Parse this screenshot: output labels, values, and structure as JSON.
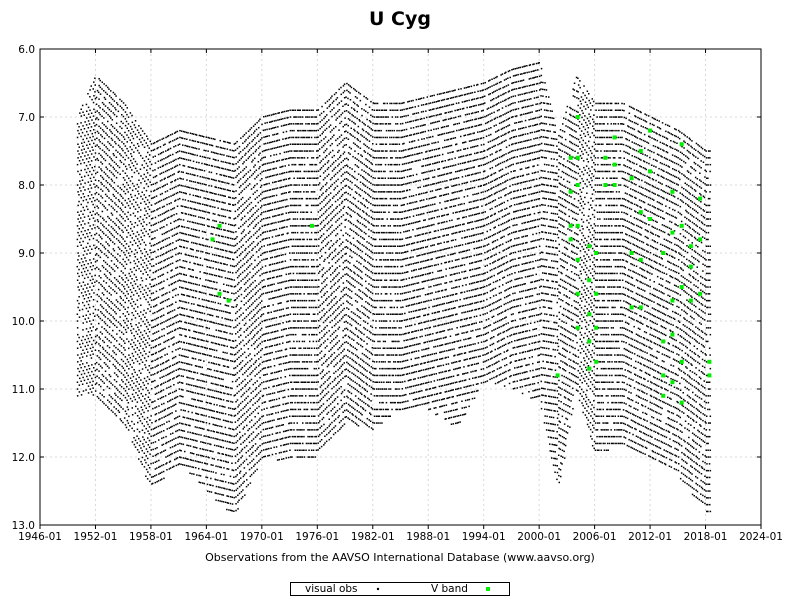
{
  "chart_data": {
    "type": "scatter",
    "title": "U Cyg",
    "xlabel": "Observations from the AAVSO International Database (www.aavso.org)",
    "ylabel": "",
    "x_ticks": [
      "1946-01",
      "1952-01",
      "1958-01",
      "1964-01",
      "1970-01",
      "1976-01",
      "1982-01",
      "1988-01",
      "1994-01",
      "2000-01",
      "2006-01",
      "2012-01",
      "2018-01",
      "2024-01"
    ],
    "y_ticks": [
      "6.0",
      "7.0",
      "8.0",
      "9.0",
      "10.0",
      "11.0",
      "12.0",
      "13.0"
    ],
    "xlim": [
      "1946-01",
      "2024-01"
    ],
    "ylim": [
      6.0,
      13.0
    ],
    "y_inverted": true,
    "grid": true,
    "legend_position": "bottom-center",
    "series": [
      {
        "name": "visual obs",
        "color": "#000000",
        "envelope": [
          {
            "x": "1950-01",
            "min": 7.0,
            "max": 11.1
          },
          {
            "x": "1952-01",
            "min": 6.4,
            "max": 11.1
          },
          {
            "x": "1955-01",
            "min": 6.8,
            "max": 11.5
          },
          {
            "x": "1958-01",
            "min": 7.4,
            "max": 12.5
          },
          {
            "x": "1961-01",
            "min": 7.2,
            "max": 12.1
          },
          {
            "x": "1964-01",
            "min": 7.3,
            "max": 12.5
          },
          {
            "x": "1967-01",
            "min": 7.4,
            "max": 12.9
          },
          {
            "x": "1970-01",
            "min": 7.0,
            "max": 12.0
          },
          {
            "x": "1973-01",
            "min": 6.9,
            "max": 12.1
          },
          {
            "x": "1976-01",
            "min": 6.9,
            "max": 12.0
          },
          {
            "x": "1979-01",
            "min": 6.5,
            "max": 11.5
          },
          {
            "x": "1982-01",
            "min": 6.8,
            "max": 11.6
          },
          {
            "x": "1985-01",
            "min": 6.8,
            "max": 11.3
          },
          {
            "x": "1988-01",
            "min": 6.7,
            "max": 11.3
          },
          {
            "x": "1991-01",
            "min": 6.6,
            "max": 11.6
          },
          {
            "x": "1994-01",
            "min": 6.5,
            "max": 10.9
          },
          {
            "x": "1997-01",
            "min": 6.3,
            "max": 11.0
          },
          {
            "x": "2000-01",
            "min": 6.2,
            "max": 11.2
          },
          {
            "x": "2002-01",
            "min": 7.3,
            "max": 12.5
          },
          {
            "x": "2004-01",
            "min": 6.4,
            "max": 11.0
          },
          {
            "x": "2006-01",
            "min": 6.8,
            "max": 12.0
          },
          {
            "x": "2009-01",
            "min": 6.8,
            "max": 11.8
          },
          {
            "x": "2012-01",
            "min": 7.0,
            "max": 12.0
          },
          {
            "x": "2015-01",
            "min": 7.2,
            "max": 12.3
          },
          {
            "x": "2018-01",
            "min": 7.5,
            "max": 12.8
          }
        ]
      },
      {
        "name": "V band",
        "color": "#00ee00",
        "points": [
          {
            "x": "1964-09",
            "y": 8.8
          },
          {
            "x": "1965-06",
            "y": 8.6
          },
          {
            "x": "1965-06",
            "y": 9.6
          },
          {
            "x": "1966-06",
            "y": 9.7
          },
          {
            "x": "1975-06",
            "y": 8.6
          },
          {
            "x": "2002-01",
            "y": 10.8
          },
          {
            "x": "2003-06",
            "y": 7.6
          },
          {
            "x": "2003-06",
            "y": 8.1
          },
          {
            "x": "2003-06",
            "y": 8.6
          },
          {
            "x": "2003-06",
            "y": 8.8
          },
          {
            "x": "2004-03",
            "y": 7.0
          },
          {
            "x": "2004-03",
            "y": 7.6
          },
          {
            "x": "2004-03",
            "y": 8.0
          },
          {
            "x": "2004-03",
            "y": 8.6
          },
          {
            "x": "2004-03",
            "y": 9.1
          },
          {
            "x": "2004-03",
            "y": 9.6
          },
          {
            "x": "2004-03",
            "y": 10.1
          },
          {
            "x": "2005-06",
            "y": 8.9
          },
          {
            "x": "2005-06",
            "y": 9.4
          },
          {
            "x": "2005-06",
            "y": 9.9
          },
          {
            "x": "2005-06",
            "y": 10.3
          },
          {
            "x": "2005-06",
            "y": 10.7
          },
          {
            "x": "2006-03",
            "y": 9.0
          },
          {
            "x": "2006-03",
            "y": 9.6
          },
          {
            "x": "2006-03",
            "y": 10.1
          },
          {
            "x": "2006-03",
            "y": 10.6
          },
          {
            "x": "2007-03",
            "y": 7.6
          },
          {
            "x": "2007-03",
            "y": 8.0
          },
          {
            "x": "2008-03",
            "y": 7.3
          },
          {
            "x": "2008-03",
            "y": 7.7
          },
          {
            "x": "2008-03",
            "y": 8.0
          },
          {
            "x": "2010-01",
            "y": 7.9
          },
          {
            "x": "2010-01",
            "y": 9.0
          },
          {
            "x": "2010-01",
            "y": 9.8
          },
          {
            "x": "2011-01",
            "y": 7.5
          },
          {
            "x": "2011-01",
            "y": 8.4
          },
          {
            "x": "2011-01",
            "y": 9.1
          },
          {
            "x": "2011-01",
            "y": 9.8
          },
          {
            "x": "2012-01",
            "y": 7.2
          },
          {
            "x": "2012-01",
            "y": 7.8
          },
          {
            "x": "2012-01",
            "y": 8.5
          },
          {
            "x": "2013-06",
            "y": 9.0
          },
          {
            "x": "2013-06",
            "y": 10.3
          },
          {
            "x": "2013-06",
            "y": 10.8
          },
          {
            "x": "2013-06",
            "y": 11.1
          },
          {
            "x": "2014-06",
            "y": 8.1
          },
          {
            "x": "2014-06",
            "y": 8.7
          },
          {
            "x": "2014-06",
            "y": 9.7
          },
          {
            "x": "2014-06",
            "y": 10.2
          },
          {
            "x": "2014-06",
            "y": 10.9
          },
          {
            "x": "2015-06",
            "y": 7.4
          },
          {
            "x": "2015-06",
            "y": 8.6
          },
          {
            "x": "2015-06",
            "y": 9.5
          },
          {
            "x": "2015-06",
            "y": 10.6
          },
          {
            "x": "2015-06",
            "y": 11.2
          },
          {
            "x": "2016-06",
            "y": 8.9
          },
          {
            "x": "2016-06",
            "y": 9.2
          },
          {
            "x": "2016-06",
            "y": 9.7
          },
          {
            "x": "2017-06",
            "y": 8.2
          },
          {
            "x": "2017-06",
            "y": 8.8
          },
          {
            "x": "2017-06",
            "y": 9.6
          },
          {
            "x": "2018-06",
            "y": 10.6
          },
          {
            "x": "2018-06",
            "y": 10.8
          }
        ]
      }
    ]
  }
}
